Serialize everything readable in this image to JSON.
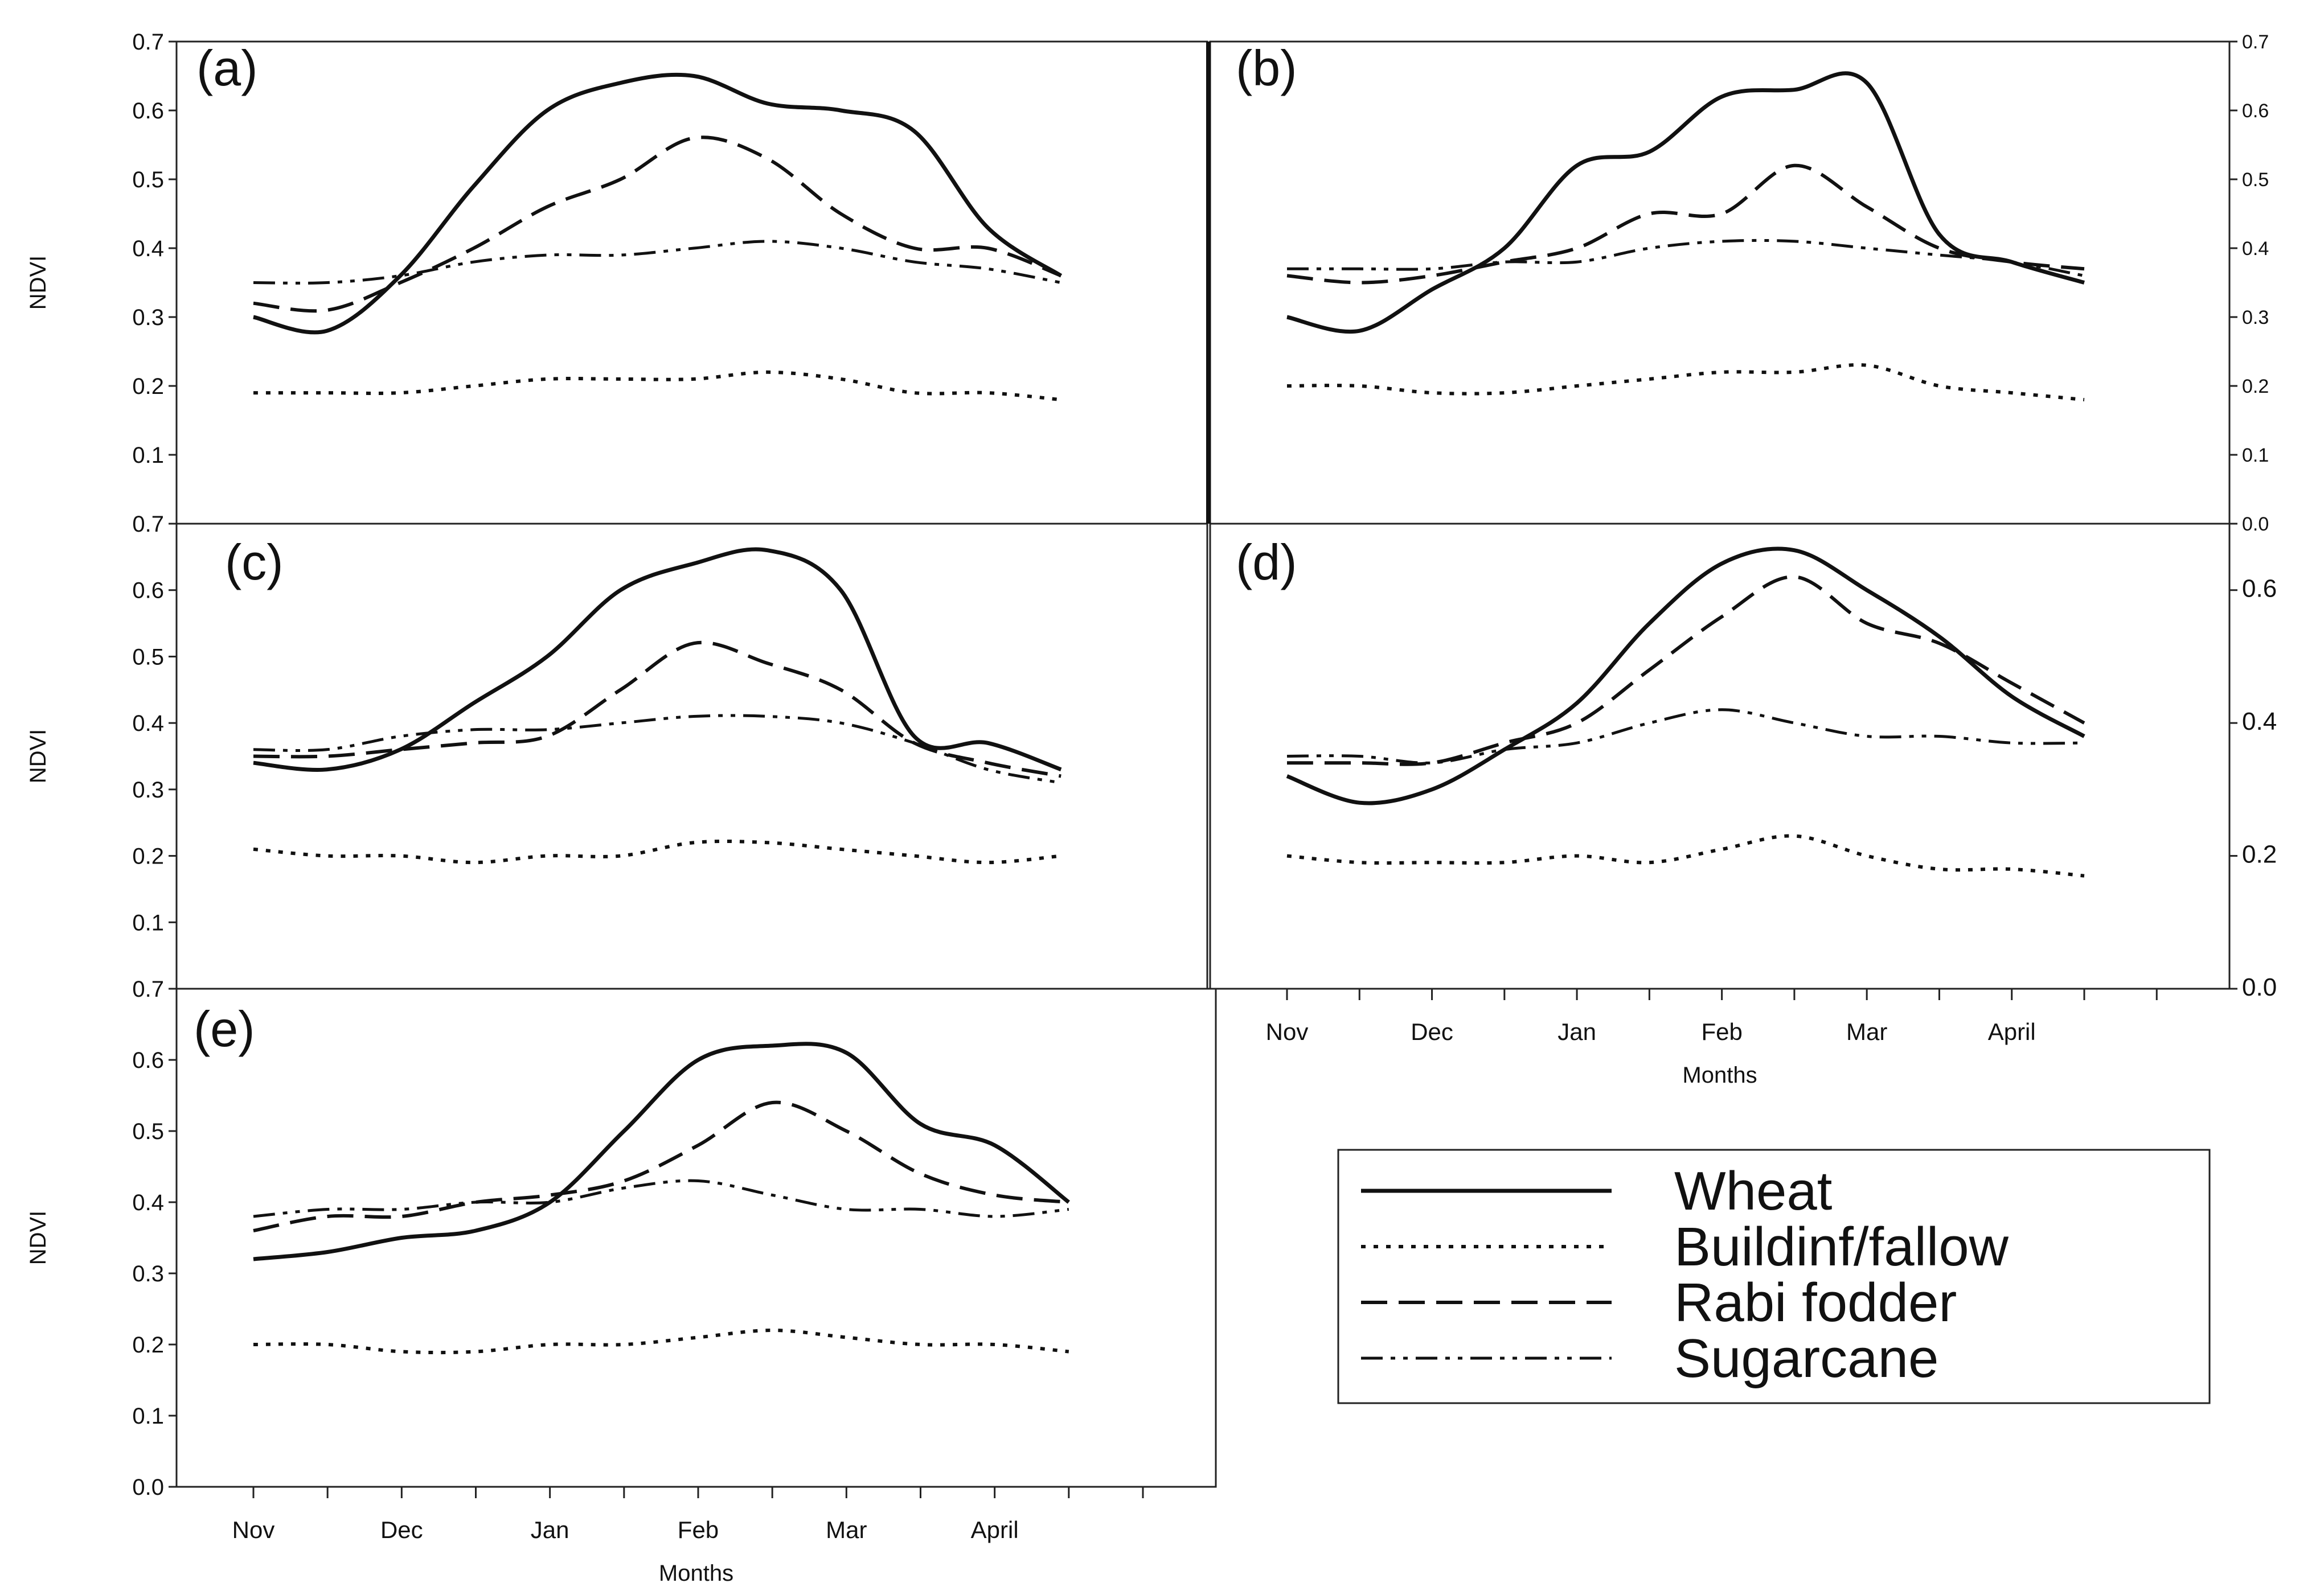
{
  "figure": {
    "ylabel": "NDVI",
    "xlabel": "Months",
    "yticks": [
      "0.0",
      "0.1",
      "0.2",
      "0.3",
      "0.4",
      "0.5",
      "0.6",
      "0.7"
    ],
    "months": [
      "Nov",
      "Dec",
      "Jan",
      "Feb",
      "Mar",
      "April"
    ]
  },
  "legend": [
    {
      "name": "Wheat",
      "style": "solid"
    },
    {
      "name": "Buildinf/fallow",
      "style": "dotted"
    },
    {
      "name": "Rabi fodder",
      "style": "dashed"
    },
    {
      "name": "Sugarcane",
      "style": "dashdotdot"
    }
  ],
  "chart_data": [
    {
      "type": "line",
      "panel": "(a)",
      "x": [
        0,
        0.5,
        1,
        1.5,
        2,
        2.5,
        3,
        3.5,
        4,
        4.5,
        5,
        5.5
      ],
      "categories": [
        "Nov",
        "Dec",
        "Jan",
        "Feb",
        "Mar",
        "April"
      ],
      "ylim": [
        0,
        0.7
      ],
      "xlabel": "Months",
      "ylabel": "NDVI",
      "series": [
        {
          "name": "Wheat",
          "values": [
            0.3,
            0.28,
            0.36,
            0.49,
            0.6,
            0.64,
            0.65,
            0.61,
            0.6,
            0.57,
            0.43,
            0.36
          ]
        },
        {
          "name": "Buildinf/fallow",
          "values": [
            0.19,
            0.19,
            0.19,
            0.2,
            0.21,
            0.21,
            0.21,
            0.22,
            0.21,
            0.19,
            0.19,
            0.18
          ]
        },
        {
          "name": "Rabi fodder",
          "values": [
            0.32,
            0.31,
            0.35,
            0.4,
            0.46,
            0.5,
            0.56,
            0.53,
            0.45,
            0.4,
            0.4,
            0.36
          ]
        },
        {
          "name": "Sugarcane",
          "values": [
            0.35,
            0.35,
            0.36,
            0.38,
            0.39,
            0.39,
            0.4,
            0.41,
            0.4,
            0.38,
            0.37,
            0.35
          ]
        }
      ]
    },
    {
      "type": "line",
      "panel": "(b)",
      "x": [
        0,
        0.5,
        1,
        1.5,
        2,
        2.5,
        3,
        3.5,
        4,
        4.5,
        5,
        5.5
      ],
      "categories": [
        "Nov",
        "Dec",
        "Jan",
        "Feb",
        "Mar",
        "April"
      ],
      "ylim": [
        0,
        0.7
      ],
      "xlabel": "Months",
      "ylabel": "NDVI",
      "series": [
        {
          "name": "Wheat",
          "values": [
            0.3,
            0.28,
            0.34,
            0.4,
            0.52,
            0.54,
            0.62,
            0.63,
            0.64,
            0.42,
            0.38,
            0.35
          ]
        },
        {
          "name": "Buildinf/fallow",
          "values": [
            0.2,
            0.2,
            0.19,
            0.19,
            0.2,
            0.21,
            0.22,
            0.22,
            0.23,
            0.2,
            0.19,
            0.18
          ]
        },
        {
          "name": "Rabi fodder",
          "values": [
            0.36,
            0.35,
            0.36,
            0.38,
            0.4,
            0.45,
            0.45,
            0.52,
            0.46,
            0.4,
            0.38,
            0.37
          ]
        },
        {
          "name": "Sugarcane",
          "values": [
            0.37,
            0.37,
            0.37,
            0.38,
            0.38,
            0.4,
            0.41,
            0.41,
            0.4,
            0.39,
            0.38,
            0.36
          ]
        }
      ]
    },
    {
      "type": "line",
      "panel": "(c)",
      "x": [
        0,
        0.5,
        1,
        1.5,
        2,
        2.5,
        3,
        3.5,
        4,
        4.5,
        5,
        5.5
      ],
      "categories": [
        "Nov",
        "Dec",
        "Jan",
        "Feb",
        "Mar",
        "April"
      ],
      "ylim": [
        0,
        0.7
      ],
      "xlabel": "Months",
      "ylabel": "NDVI",
      "series": [
        {
          "name": "Wheat",
          "values": [
            0.34,
            0.33,
            0.36,
            0.43,
            0.5,
            0.6,
            0.64,
            0.66,
            0.6,
            0.38,
            0.37,
            0.33
          ]
        },
        {
          "name": "Buildinf/fallow",
          "values": [
            0.21,
            0.2,
            0.2,
            0.19,
            0.2,
            0.2,
            0.22,
            0.22,
            0.21,
            0.2,
            0.19,
            0.2
          ]
        },
        {
          "name": "Rabi fodder",
          "values": [
            0.35,
            0.35,
            0.36,
            0.37,
            0.38,
            0.45,
            0.52,
            0.49,
            0.45,
            0.37,
            0.34,
            0.32
          ]
        },
        {
          "name": "Sugarcane",
          "values": [
            0.36,
            0.36,
            0.38,
            0.39,
            0.39,
            0.4,
            0.41,
            0.41,
            0.4,
            0.37,
            0.33,
            0.31
          ]
        }
      ]
    },
    {
      "type": "line",
      "panel": "(d)",
      "x": [
        0,
        0.5,
        1,
        1.5,
        2,
        2.5,
        3,
        3.5,
        4,
        4.5,
        5,
        5.5
      ],
      "categories": [
        "Nov",
        "Dec",
        "Jan",
        "Feb",
        "Mar",
        "April"
      ],
      "ylim": [
        0,
        0.7
      ],
      "xlabel": "Months",
      "ylabel": "NDVI",
      "series": [
        {
          "name": "Wheat",
          "values": [
            0.32,
            0.28,
            0.3,
            0.36,
            0.43,
            0.55,
            0.64,
            0.66,
            0.6,
            0.53,
            0.44,
            0.38
          ]
        },
        {
          "name": "Buildinf/fallow",
          "values": [
            0.2,
            0.19,
            0.19,
            0.19,
            0.2,
            0.19,
            0.21,
            0.23,
            0.2,
            0.18,
            0.18,
            0.17
          ]
        },
        {
          "name": "Rabi fodder",
          "values": [
            0.34,
            0.34,
            0.34,
            0.37,
            0.4,
            0.48,
            0.56,
            0.62,
            0.55,
            0.52,
            0.46,
            0.4
          ]
        },
        {
          "name": "Sugarcane",
          "values": [
            0.35,
            0.35,
            0.34,
            0.36,
            0.37,
            0.4,
            0.42,
            0.4,
            0.38,
            0.38,
            0.37,
            0.37
          ]
        }
      ]
    },
    {
      "type": "line",
      "panel": "(e)",
      "x": [
        0,
        0.5,
        1,
        1.5,
        2,
        2.5,
        3,
        3.5,
        4,
        4.5,
        5,
        5.5
      ],
      "categories": [
        "Nov",
        "Dec",
        "Jan",
        "Feb",
        "Mar",
        "April"
      ],
      "ylim": [
        0,
        0.7
      ],
      "xlabel": "Months",
      "ylabel": "NDVI",
      "series": [
        {
          "name": "Wheat",
          "values": [
            0.32,
            0.33,
            0.35,
            0.36,
            0.4,
            0.5,
            0.6,
            0.62,
            0.61,
            0.51,
            0.48,
            0.4
          ]
        },
        {
          "name": "Buildinf/fallow",
          "values": [
            0.2,
            0.2,
            0.19,
            0.19,
            0.2,
            0.2,
            0.21,
            0.22,
            0.21,
            0.2,
            0.2,
            0.19
          ]
        },
        {
          "name": "Rabi fodder",
          "values": [
            0.36,
            0.38,
            0.38,
            0.4,
            0.41,
            0.43,
            0.48,
            0.54,
            0.5,
            0.44,
            0.41,
            0.4
          ]
        },
        {
          "name": "Sugarcane",
          "values": [
            0.38,
            0.39,
            0.39,
            0.4,
            0.4,
            0.42,
            0.43,
            0.41,
            0.39,
            0.39,
            0.38,
            0.39
          ]
        }
      ]
    }
  ]
}
